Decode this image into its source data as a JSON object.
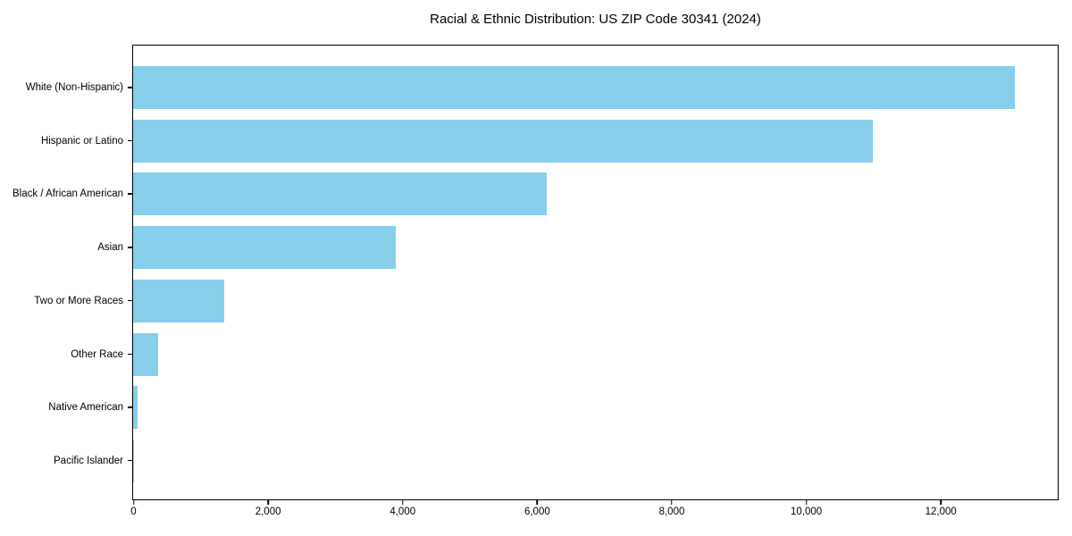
{
  "chart_data": {
    "type": "bar",
    "orientation": "horizontal",
    "title": "Racial & Ethnic Distribution: US ZIP Code 30341 (2024)",
    "categories": [
      "White (Non-Hispanic)",
      "Hispanic or Latino",
      "Black / African American",
      "Asian",
      "Two or More Races",
      "Other Race",
      "Native American",
      "Pacific Islander"
    ],
    "values": [
      13100,
      11000,
      6150,
      3900,
      1350,
      375,
      65,
      10
    ],
    "xlabel": "",
    "ylabel": "",
    "xlim": [
      0,
      13730
    ],
    "xticks": [
      0,
      2000,
      4000,
      6000,
      8000,
      10000,
      12000
    ],
    "xtick_labels": [
      "0",
      "2,000",
      "4,000",
      "6,000",
      "8,000",
      "10,000",
      "12,000"
    ],
    "bar_color": "#87CEEB",
    "grid": false,
    "legend": null,
    "plot_background": "#ffffff",
    "spine_color": "#000000"
  }
}
